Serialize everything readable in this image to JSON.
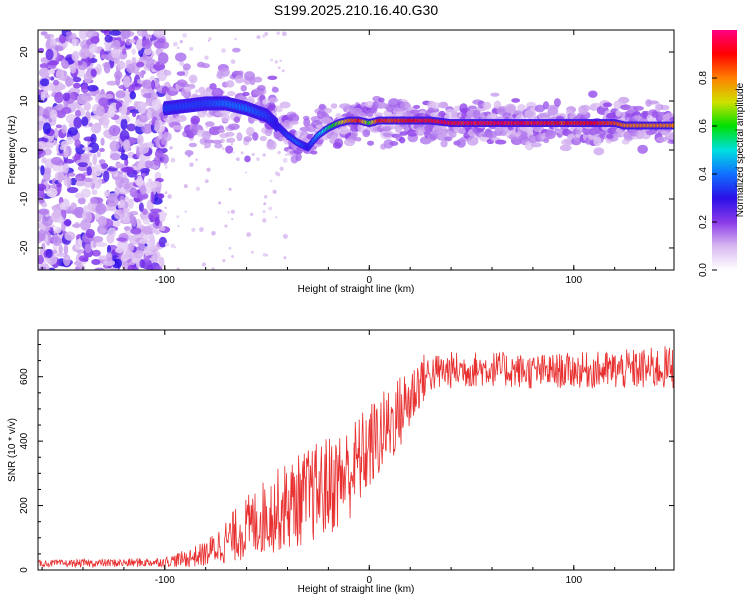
{
  "title": "S199.2025.210.16.40.G30",
  "chart_data": [
    {
      "type": "heatmap",
      "xlabel": "Height of straight line (km)",
      "ylabel": "Frequency (Hz)",
      "xlim": [
        -162,
        149
      ],
      "ylim": [
        -24.5,
        24.5
      ],
      "xticks": [
        -100,
        0,
        100
      ],
      "yticks": [
        -20,
        -10,
        0,
        10,
        20
      ],
      "colorbar": {
        "label": "Normalized spectral amplitude",
        "range": [
          0,
          1
        ],
        "ticks": [
          "0.0",
          "0.2",
          "0.4",
          "0.6",
          "0.8"
        ],
        "colors": [
          "#ffffff",
          "#d8b8f0",
          "#8a3aea",
          "#2a10e8",
          "#1070ff",
          "#00e0e0",
          "#00e000",
          "#d0e000",
          "#ff8000",
          "#ff0000",
          "#ff0080"
        ]
      },
      "ridge": {
        "x": [
          -100,
          -90,
          -80,
          -70,
          -60,
          -50,
          -45,
          -40,
          -35,
          -30,
          -25,
          -20,
          -15,
          -10,
          -5,
          0,
          5,
          10,
          20,
          30,
          40,
          50,
          60,
          70,
          80,
          90,
          100,
          110,
          120,
          125,
          130,
          140,
          149
        ],
        "y": [
          8.5,
          9,
          9.5,
          9.5,
          8.5,
          7,
          5,
          3,
          1.5,
          0.5,
          3,
          4.5,
          5.5,
          6,
          6,
          5.5,
          6,
          6,
          6,
          6,
          5.5,
          5.5,
          5.5,
          5.5,
          5.5,
          5.5,
          5.5,
          5.5,
          5.5,
          5,
          5,
          5,
          5
        ],
        "amplitude": [
          0.35,
          0.35,
          0.35,
          0.4,
          0.4,
          0.35,
          0.3,
          0.35,
          0.4,
          0.3,
          0.45,
          0.55,
          0.65,
          0.8,
          0.9,
          0.6,
          0.9,
          0.85,
          0.9,
          0.95,
          0.95,
          0.95,
          0.95,
          0.95,
          0.95,
          0.9,
          0.9,
          0.9,
          0.85,
          0.8,
          0.8,
          0.8,
          0.8
        ]
      }
    },
    {
      "type": "line",
      "xlabel": "Height of straight line (km)",
      "ylabel": "SNR (10 * v/v)",
      "xlim": [
        -162,
        149
      ],
      "ylim": [
        0,
        745
      ],
      "xticks": [
        -100,
        0,
        100
      ],
      "yticks": [
        0,
        200,
        400,
        600
      ],
      "color": "#e83030",
      "trend": {
        "x": [
          -162,
          -120,
          -100,
          -90,
          -80,
          -70,
          -60,
          -50,
          -40,
          -30,
          -20,
          -10,
          0,
          10,
          20,
          25,
          30,
          40,
          60,
          80,
          100,
          120,
          140,
          149
        ],
        "y": [
          20,
          22,
          25,
          35,
          50,
          90,
          130,
          170,
          200,
          230,
          260,
          300,
          380,
          450,
          530,
          590,
          610,
          620,
          625,
          615,
          620,
          620,
          625,
          630
        ]
      },
      "spread": {
        "x": [
          -162,
          -100,
          -80,
          -60,
          -40,
          -20,
          0,
          20,
          30,
          60,
          100,
          149
        ],
        "y": [
          10,
          15,
          40,
          100,
          140,
          160,
          140,
          110,
          60,
          55,
          55,
          70
        ]
      }
    }
  ]
}
